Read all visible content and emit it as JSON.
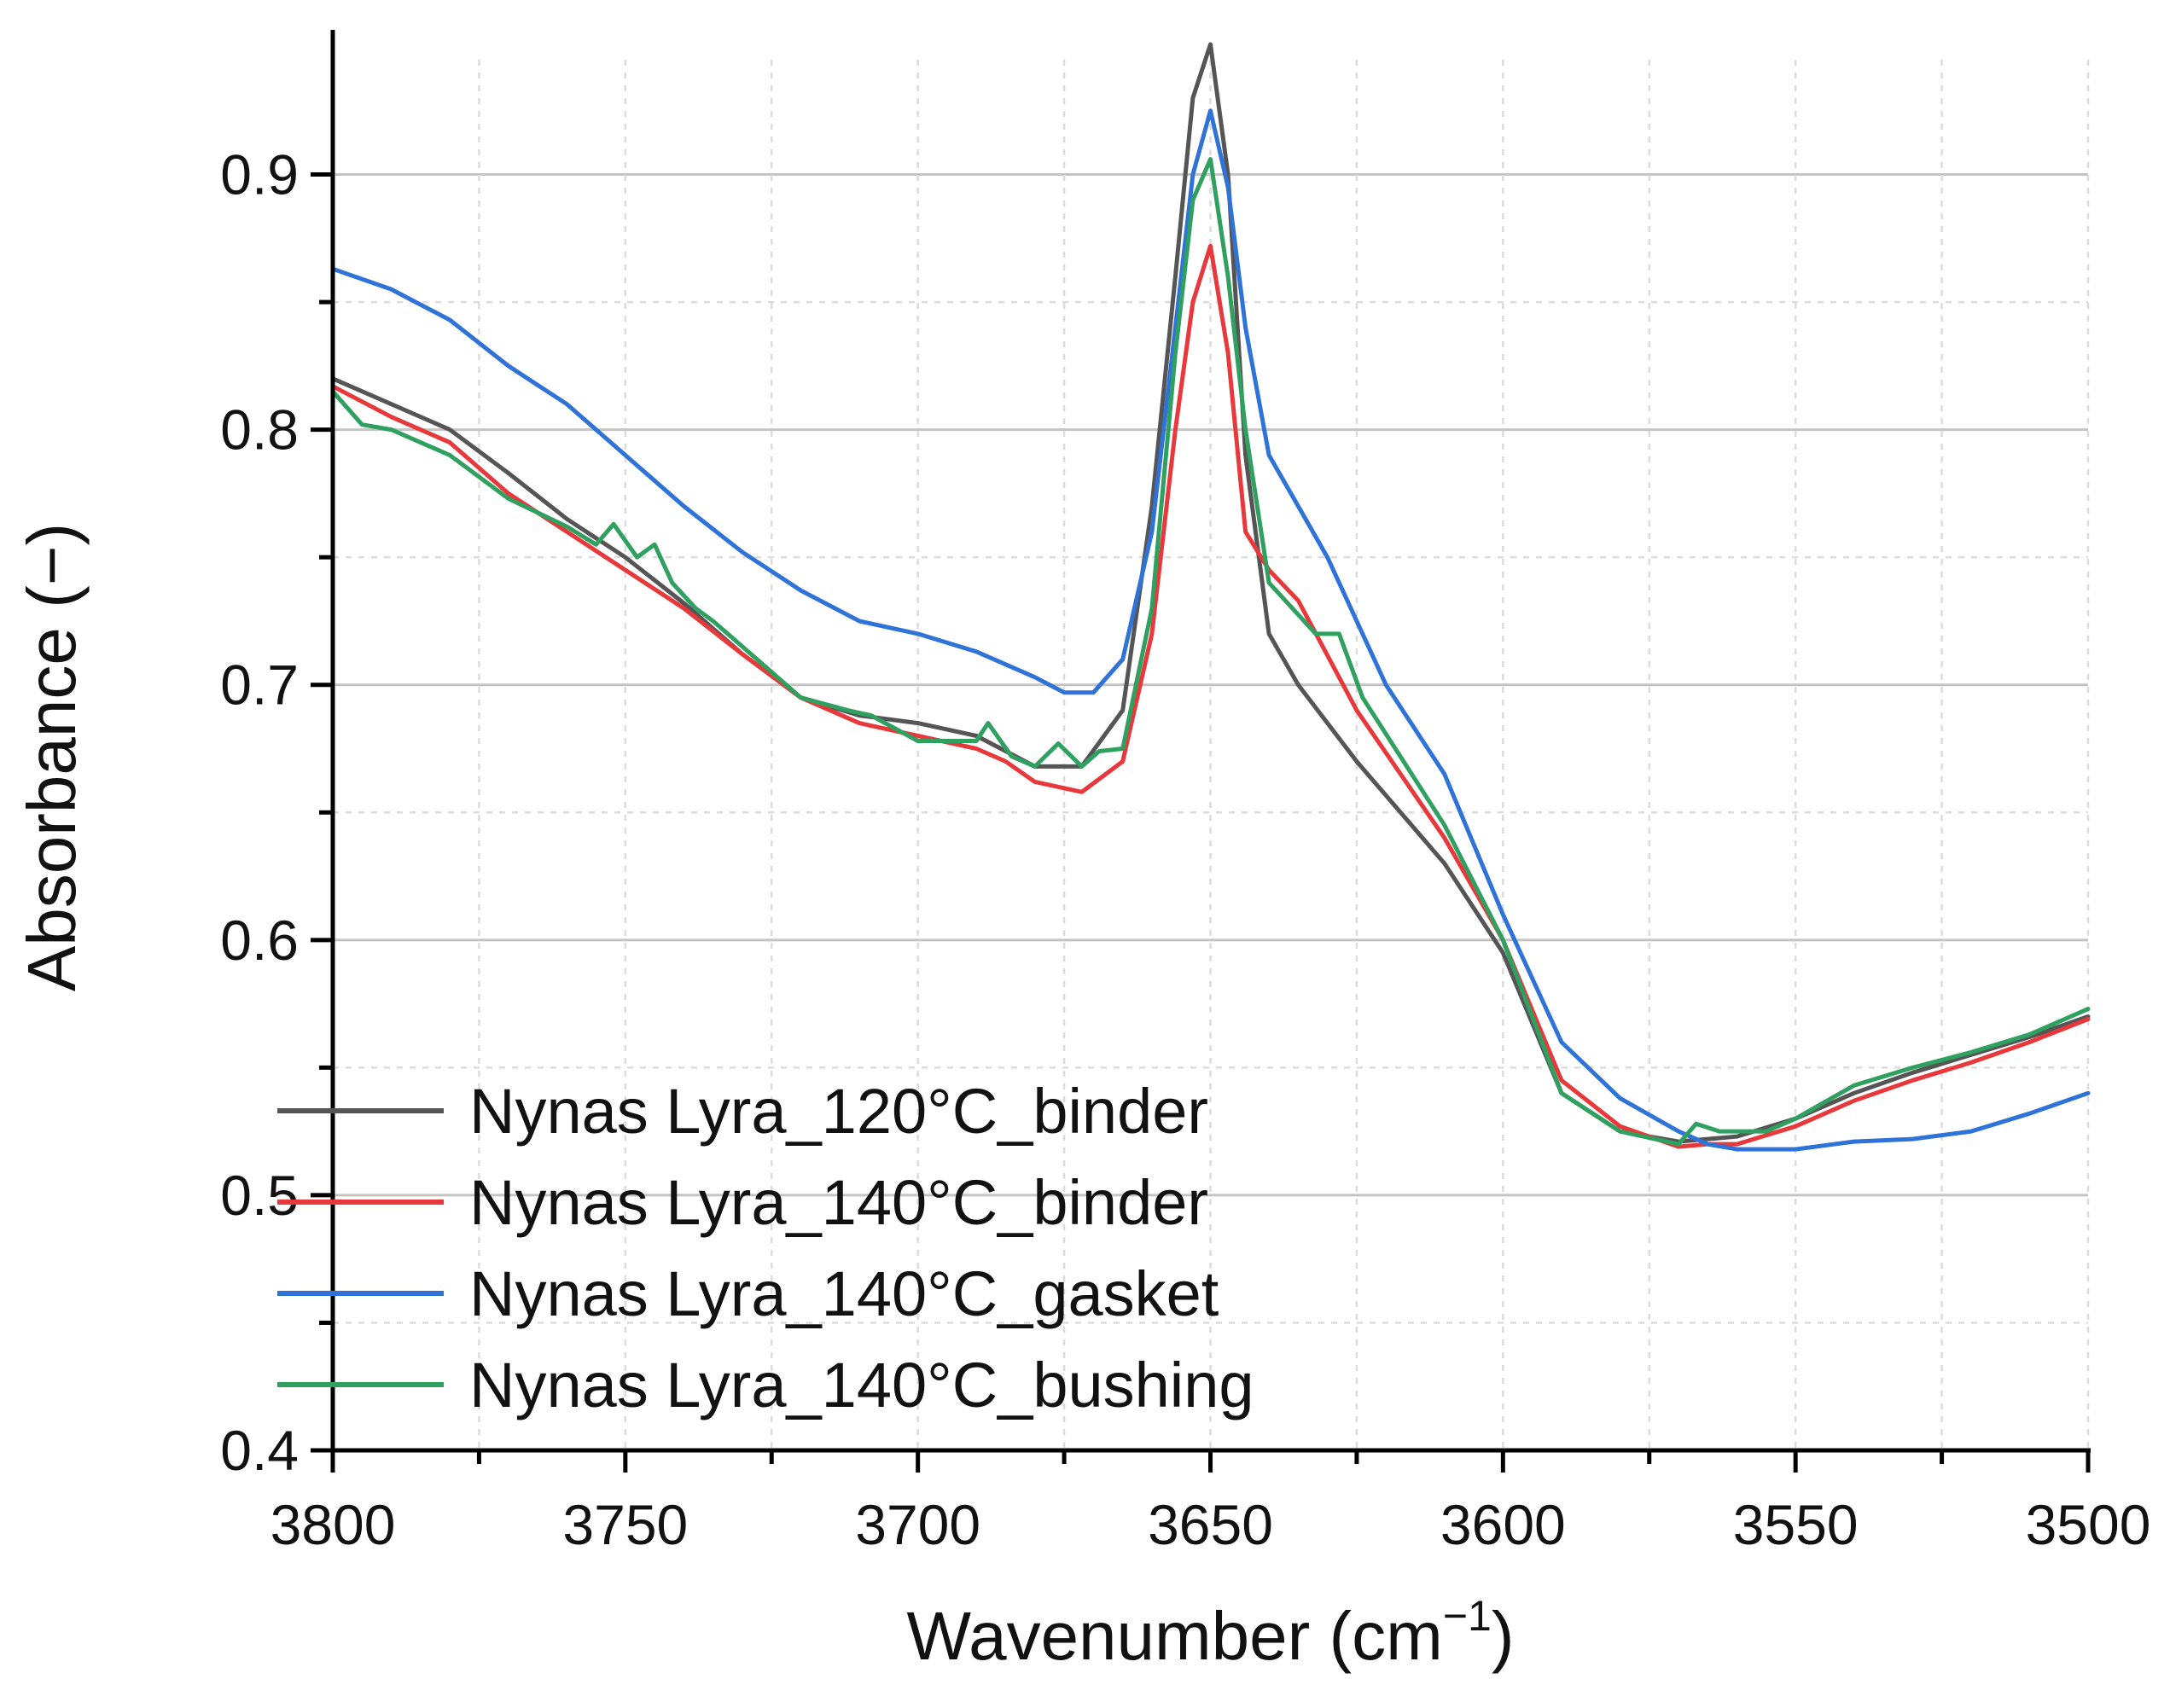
{
  "chart_data": {
    "type": "line",
    "title": "",
    "xlabel": "Wavenumber (cm",
    "xlabel_superscript": "−1",
    "xlabel_suffix": ")",
    "ylabel": "Absorbance (−)",
    "xlim": [
      3800,
      3500
    ],
    "ylim": [
      0.4,
      0.95
    ],
    "x_reversed": true,
    "x_ticks": [
      3800,
      3750,
      3700,
      3650,
      3600,
      3550,
      3500
    ],
    "x_tick_labels": [
      "3800",
      "3750",
      "3700",
      "3650",
      "3600",
      "3550",
      "3500"
    ],
    "x_minor_ticks": [
      3775,
      3725,
      3675,
      3625,
      3575,
      3525
    ],
    "y_ticks": [
      0.4,
      0.5,
      0.6,
      0.7,
      0.8,
      0.9
    ],
    "y_tick_labels": [
      "0.4",
      "0.5",
      "0.6",
      "0.7",
      "0.8",
      "0.9"
    ],
    "y_minor_ticks": [
      0.45,
      0.55,
      0.65,
      0.75,
      0.85
    ],
    "grid": true,
    "legend_position": "bottom-left",
    "series": [
      {
        "name": "Nynas Lyra_120°C_binder",
        "color": "#555555",
        "x": [
          3800,
          3790,
          3780,
          3770,
          3760,
          3750,
          3740,
          3730,
          3720,
          3710,
          3700,
          3690,
          3680,
          3672,
          3665,
          3660,
          3656,
          3653,
          3650,
          3647,
          3644,
          3640,
          3635,
          3625,
          3610,
          3600,
          3590,
          3580,
          3570,
          3565,
          3560,
          3550,
          3540,
          3530,
          3520,
          3510,
          3500
        ],
        "y": [
          0.82,
          0.81,
          0.8,
          0.783,
          0.765,
          0.75,
          0.732,
          0.712,
          0.695,
          0.688,
          0.685,
          0.68,
          0.668,
          0.668,
          0.69,
          0.77,
          0.86,
          0.93,
          0.951,
          0.9,
          0.79,
          0.72,
          0.7,
          0.67,
          0.63,
          0.595,
          0.54,
          0.525,
          0.521,
          0.522,
          0.523,
          0.53,
          0.54,
          0.548,
          0.555,
          0.562,
          0.57
        ]
      },
      {
        "name": "Nynas Lyra_140°C_binder",
        "color": "#e8383b",
        "x": [
          3800,
          3790,
          3780,
          3770,
          3760,
          3750,
          3740,
          3730,
          3720,
          3710,
          3700,
          3690,
          3685,
          3680,
          3672,
          3665,
          3660,
          3656,
          3653,
          3650,
          3647,
          3644,
          3640,
          3635,
          3625,
          3610,
          3600,
          3590,
          3580,
          3570,
          3565,
          3560,
          3550,
          3540,
          3530,
          3520,
          3510,
          3500
        ],
        "y": [
          0.817,
          0.805,
          0.795,
          0.775,
          0.76,
          0.745,
          0.73,
          0.712,
          0.695,
          0.685,
          0.68,
          0.675,
          0.67,
          0.662,
          0.658,
          0.67,
          0.72,
          0.8,
          0.85,
          0.872,
          0.83,
          0.76,
          0.745,
          0.733,
          0.69,
          0.64,
          0.6,
          0.545,
          0.527,
          0.519,
          0.52,
          0.52,
          0.527,
          0.537,
          0.545,
          0.552,
          0.56,
          0.569
        ]
      },
      {
        "name": "Nynas Lyra_140°C_gasket",
        "color": "#2f73d8",
        "x": [
          3800,
          3790,
          3780,
          3770,
          3760,
          3750,
          3740,
          3730,
          3720,
          3710,
          3700,
          3690,
          3680,
          3675,
          3670,
          3665,
          3660,
          3656,
          3653,
          3650,
          3647,
          3644,
          3640,
          3635,
          3630,
          3620,
          3610,
          3600,
          3590,
          3580,
          3570,
          3565,
          3560,
          3550,
          3540,
          3530,
          3520,
          3510,
          3500
        ],
        "y": [
          0.863,
          0.855,
          0.843,
          0.825,
          0.81,
          0.79,
          0.77,
          0.752,
          0.737,
          0.725,
          0.72,
          0.713,
          0.703,
          0.697,
          0.697,
          0.71,
          0.76,
          0.84,
          0.9,
          0.925,
          0.895,
          0.84,
          0.79,
          0.77,
          0.75,
          0.7,
          0.665,
          0.61,
          0.56,
          0.538,
          0.525,
          0.52,
          0.518,
          0.518,
          0.521,
          0.522,
          0.525,
          0.532,
          0.54
        ]
      },
      {
        "name": "Nynas Lyra_140°C_bushing",
        "color": "#2fa05f",
        "x": [
          3800,
          3795,
          3790,
          3780,
          3770,
          3760,
          3755,
          3752,
          3748,
          3745,
          3742,
          3738,
          3735,
          3730,
          3720,
          3712,
          3708,
          3700,
          3690,
          3688,
          3684,
          3680,
          3676,
          3672,
          3669,
          3665,
          3660,
          3656,
          3653,
          3650,
          3647,
          3644,
          3640,
          3632,
          3628,
          3624,
          3610,
          3600,
          3590,
          3580,
          3570,
          3567,
          3563,
          3555,
          3550,
          3540,
          3530,
          3520,
          3510,
          3500
        ],
        "y": [
          0.815,
          0.802,
          0.8,
          0.79,
          0.773,
          0.762,
          0.755,
          0.763,
          0.75,
          0.755,
          0.74,
          0.73,
          0.725,
          0.715,
          0.695,
          0.69,
          0.688,
          0.678,
          0.678,
          0.685,
          0.672,
          0.668,
          0.677,
          0.668,
          0.674,
          0.675,
          0.73,
          0.83,
          0.89,
          0.906,
          0.86,
          0.8,
          0.74,
          0.72,
          0.72,
          0.695,
          0.645,
          0.6,
          0.54,
          0.525,
          0.52,
          0.528,
          0.525,
          0.525,
          0.53,
          0.543,
          0.55,
          0.556,
          0.563,
          0.573
        ]
      }
    ]
  }
}
